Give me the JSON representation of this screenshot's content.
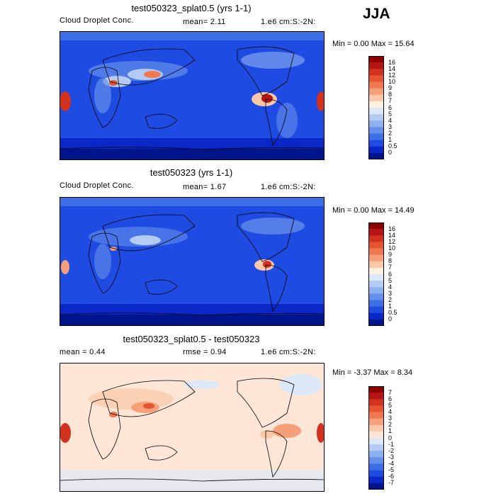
{
  "season": "JJA",
  "panels": [
    {
      "id": "splat",
      "title": "test050323_splat0.5 (yrs 1-1)",
      "sub_left": "Cloud Droplet Conc.",
      "mean_text": "mean=   2.11",
      "units": "1.e6 cm:S:-2N:",
      "minmax": "Min =   0.00 Max =  15.64",
      "kind": "abs"
    },
    {
      "id": "control",
      "title": "test050323 (yrs 1-1)",
      "sub_left": "Cloud Droplet Conc.",
      "mean_text": "mean=   1.67",
      "units": "1.e6 cm:S:-2N:",
      "minmax": "Min =   0.00 Max =  14.49",
      "kind": "abs"
    },
    {
      "id": "diff",
      "title": "test050323_splat0.5 - test050323",
      "sub_left": "mean =   0.44",
      "mean_text": "rmse =   0.94",
      "units": "1.e6 cm:S:-2N:",
      "minmax": "Min = -3.37 Max =  8.34",
      "kind": "diff"
    }
  ],
  "colorbars": {
    "abs": {
      "labels": [
        "16",
        "14",
        "12",
        "10",
        "9",
        "8",
        "7",
        "6",
        "5",
        "4",
        "3",
        "2",
        "1",
        "0.5",
        "0"
      ],
      "colors": [
        "#8e0000",
        "#b41414",
        "#d2321e",
        "#e65532",
        "#f07850",
        "#f5a078",
        "#fac8a8",
        "#fdf0e0",
        "#dce8f8",
        "#b4ccf4",
        "#8cb0f0",
        "#6490eb",
        "#3c6ee6",
        "#1e4be1",
        "#0a28c8",
        "#00148c"
      ]
    },
    "diff": {
      "labels": [
        "7",
        "6",
        "5",
        "4",
        "3",
        "2",
        "1",
        "0",
        "-1",
        "-2",
        "-3",
        "-4",
        "-5",
        "-6",
        "-7"
      ],
      "colors": [
        "#8e0000",
        "#b41414",
        "#d2321e",
        "#e65532",
        "#f07850",
        "#f5a078",
        "#fac8a8",
        "#fde6d6",
        "#dce8f8",
        "#b4ccf4",
        "#8cb0f0",
        "#6490eb",
        "#3c6ee6",
        "#1e4be1",
        "#0a28c8",
        "#00148c"
      ]
    }
  },
  "chart_data": [
    {
      "type": "heatmap",
      "title": "test050323_splat0.5 (yrs 1-1)",
      "variable": "Cloud Droplet Conc.",
      "units": "1.e6 cm:S:-2N:",
      "mean": 2.11,
      "min": 0.0,
      "max": 15.64,
      "levels": [
        0,
        0.5,
        1,
        2,
        3,
        4,
        5,
        6,
        7,
        8,
        9,
        10,
        12,
        14,
        16
      ]
    },
    {
      "type": "heatmap",
      "title": "test050323 (yrs 1-1)",
      "variable": "Cloud Droplet Conc.",
      "units": "1.e6 cm:S:-2N:",
      "mean": 1.67,
      "min": 0.0,
      "max": 14.49,
      "levels": [
        0,
        0.5,
        1,
        2,
        3,
        4,
        5,
        6,
        7,
        8,
        9,
        10,
        12,
        14,
        16
      ]
    },
    {
      "type": "heatmap",
      "title": "test050323_splat0.5 - test050323",
      "units": "1.e6 cm:S:-2N:",
      "mean": 0.44,
      "rmse": 0.94,
      "min": -3.37,
      "max": 8.34,
      "levels": [
        -7,
        -6,
        -5,
        -4,
        -3,
        -2,
        -1,
        0,
        1,
        2,
        3,
        4,
        5,
        6,
        7
      ]
    }
  ]
}
